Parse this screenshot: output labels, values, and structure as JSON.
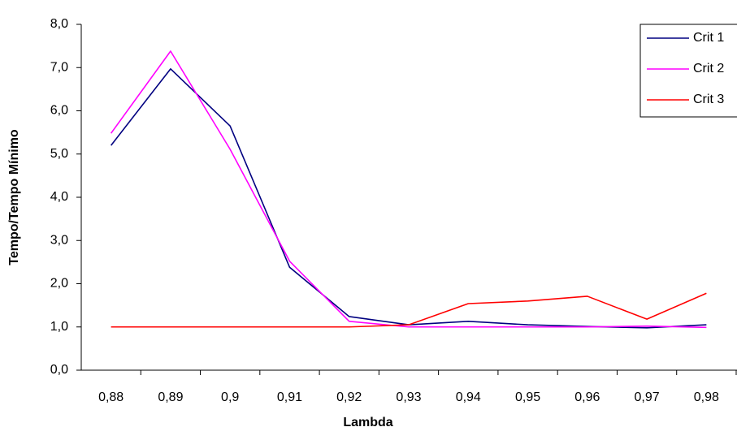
{
  "chart_data": {
    "type": "line",
    "x_label": "Lambda",
    "y_label": "Tempo/Tempo Mínimo",
    "categories": [
      "0,88",
      "0,89",
      "0,9",
      "0,91",
      "0,92",
      "0,93",
      "0,94",
      "0,95",
      "0,96",
      "0,97",
      "0,98"
    ],
    "series": [
      {
        "name": "Crit 1",
        "color": "#000080",
        "values": [
          5.2,
          6.97,
          5.65,
          2.38,
          1.24,
          1.05,
          1.13,
          1.05,
          1.01,
          0.98,
          1.05
        ]
      },
      {
        "name": "Crit 2",
        "color": "#ff00ff",
        "values": [
          5.48,
          7.38,
          5.11,
          2.52,
          1.13,
          1.0,
          1.0,
          1.0,
          1.0,
          1.02,
          0.99
        ]
      },
      {
        "name": "Crit 3",
        "color": "#ff0000",
        "values": [
          1.0,
          1.0,
          1.0,
          1.0,
          1.0,
          1.05,
          1.54,
          1.6,
          1.71,
          1.18,
          1.78
        ]
      }
    ],
    "ylim": [
      0,
      8
    ],
    "yticks": [
      {
        "value": 0,
        "label": "0,0"
      },
      {
        "value": 1,
        "label": "1,0"
      },
      {
        "value": 2,
        "label": "2,0"
      },
      {
        "value": 3,
        "label": "3,0"
      },
      {
        "value": 4,
        "label": "4,0"
      },
      {
        "value": 5,
        "label": "5,0"
      },
      {
        "value": 6,
        "label": "6,0"
      },
      {
        "value": 7,
        "label": "7,0"
      },
      {
        "value": 8,
        "label": "8,0"
      }
    ],
    "grid": false,
    "legend": "upper right"
  }
}
